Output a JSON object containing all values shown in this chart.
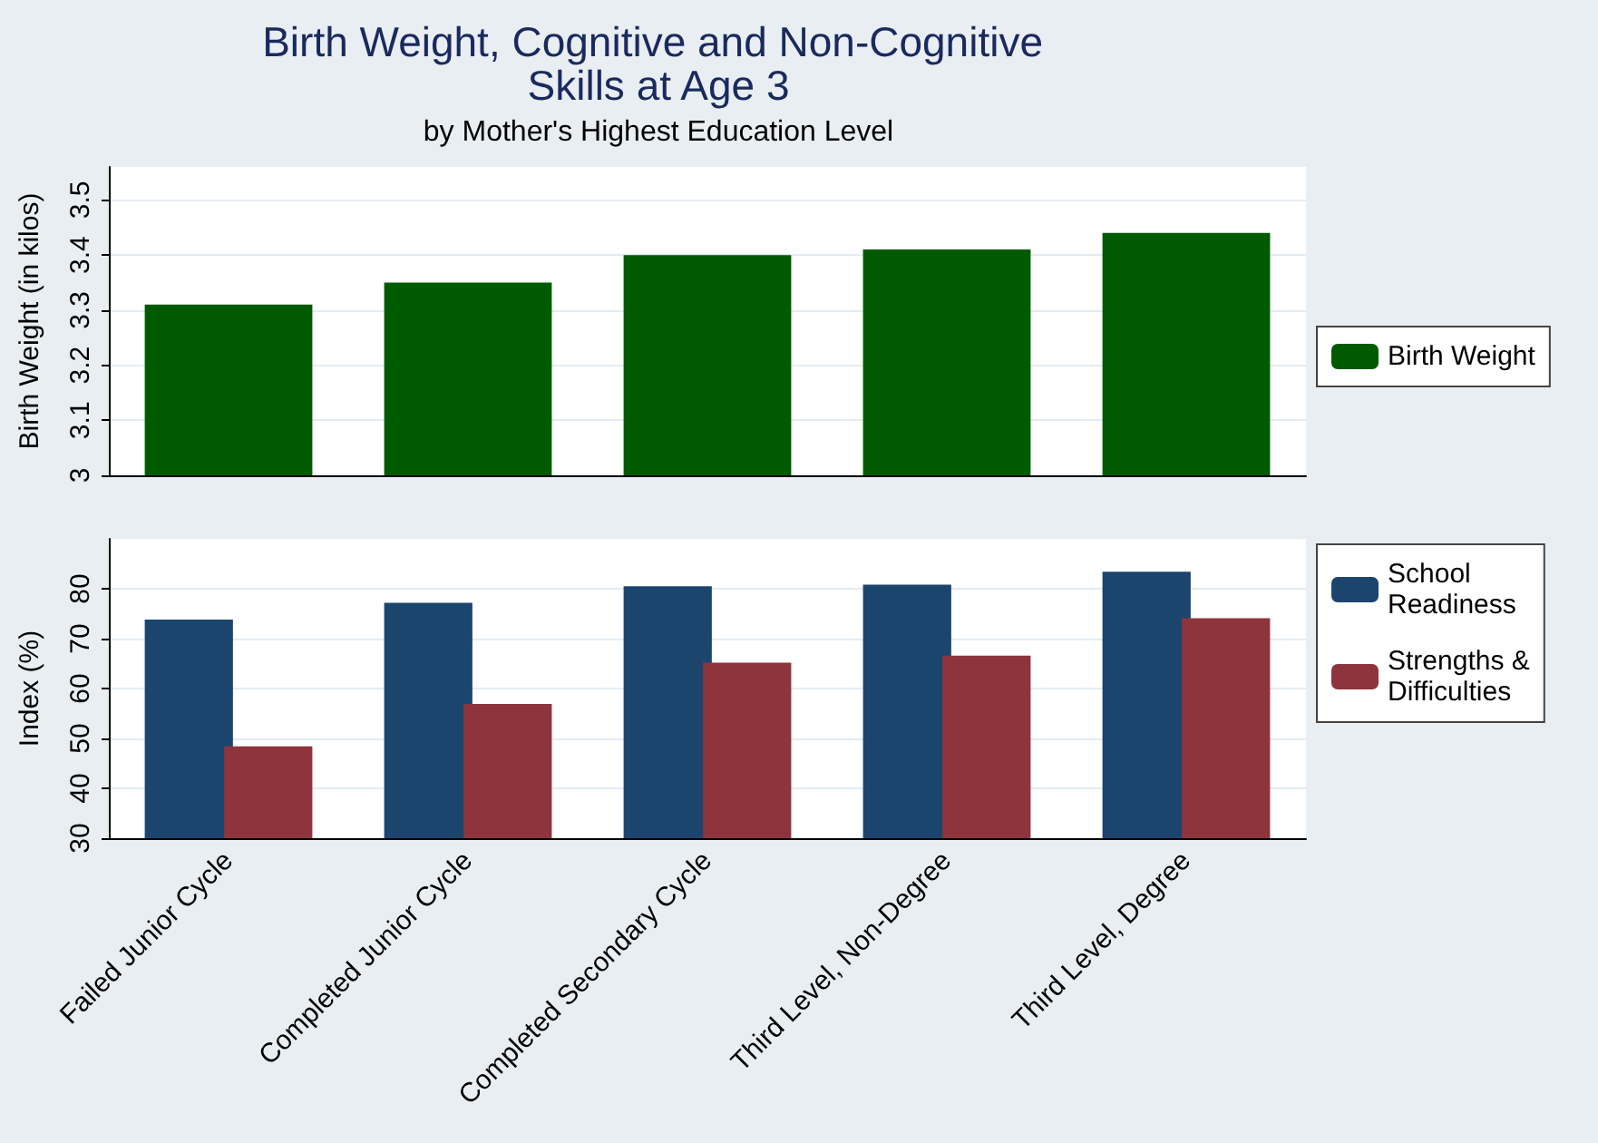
{
  "chart_data": [
    {
      "type": "bar",
      "title": "Birth Weight, Cognitive and Non-Cognitive Skills at Age 3",
      "subtitle": "by Mother's Highest Education Level",
      "ylabel": "Birth Weight (in kilos)",
      "categories": [
        null,
        null,
        null,
        null,
        null
      ],
      "series": [
        {
          "name": "Birth Weight",
          "color": "#005a00",
          "values": [
            3.31,
            3.35,
            3.4,
            3.41,
            3.44
          ]
        }
      ],
      "ylim": [
        3,
        3.56
      ],
      "yticks": [
        3,
        3.1,
        3.2,
        3.3,
        3.4,
        3.5
      ],
      "grid": "y",
      "legend": "right",
      "tick_labels": "y"
    },
    {
      "type": "bar",
      "ylabel": "Index (%)",
      "categories": [
        "Failed Junior Cycle",
        "Completed Junior Cycle",
        "Completed Secondary Cycle",
        "Third Level, Non-Degree",
        "Third Level, Degree"
      ],
      "series": [
        {
          "name": "School Readiness",
          "color": "#1c456e",
          "values": [
            73.8,
            77.2,
            80.5,
            80.8,
            83.4
          ]
        },
        {
          "name": "Strengths & Difficulties",
          "color": "#8e343c",
          "values": [
            48.4,
            56.9,
            65.2,
            66.6,
            74.1
          ]
        }
      ],
      "ylim": [
        30,
        90
      ],
      "yticks": [
        30,
        40,
        50,
        60,
        70,
        80
      ],
      "grid": "y",
      "legend": "right"
    }
  ]
}
